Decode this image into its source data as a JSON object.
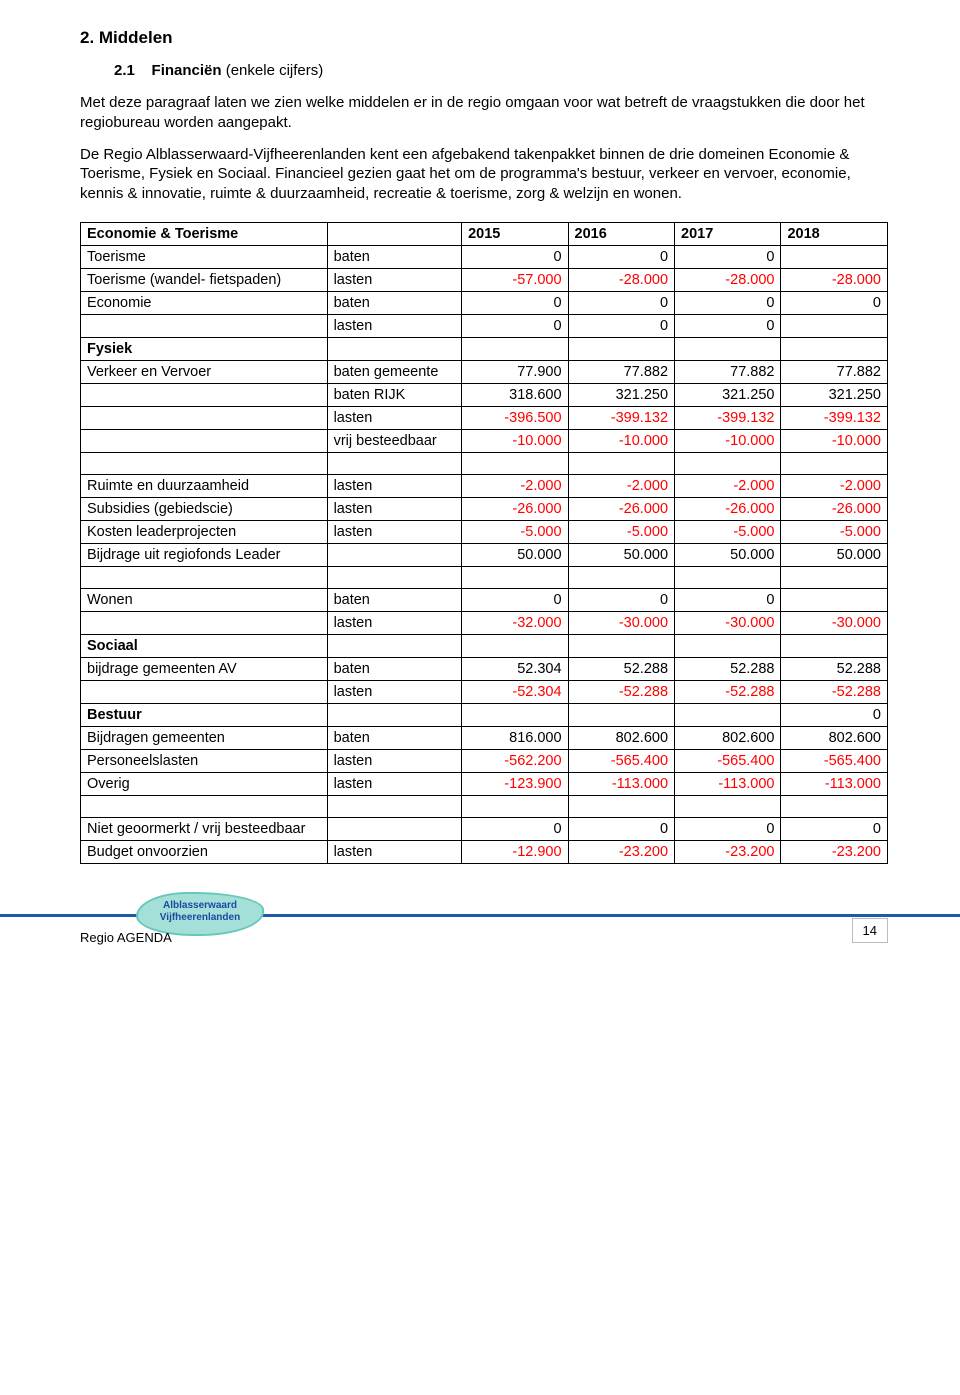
{
  "headings": {
    "section": "2. Middelen",
    "sub_num": "2.1",
    "sub_title": "Financiën",
    "sub_paren": "(enkele cijfers)"
  },
  "paragraphs": {
    "p1": "Met deze paragraaf laten we zien welke middelen er in de regio omgaan voor wat betreft de vraagstukken die door het regiobureau worden aangepakt.",
    "p2": "De Regio Alblasserwaard-Vijfheerenlanden kent een afgebakend takenpakket binnen de drie domeinen Economie & Toerisme, Fysiek en Sociaal. Financieel gezien gaat het om de programma's bestuur, verkeer en vervoer, economie, kennis & innovatie, ruimte & duurzaamheid, recreatie & toerisme, zorg & welzijn en wonen."
  },
  "table": {
    "header": [
      "Economie & Toerisme",
      "",
      "2015",
      "2016",
      "2017",
      "2018"
    ],
    "rows": [
      {
        "label": "Toerisme",
        "type": "baten",
        "v": [
          "0",
          "0",
          "0",
          ""
        ]
      },
      {
        "label": "Toerisme (wandel- fietspaden)",
        "type": "lasten",
        "v": [
          "-57.000",
          "-28.000",
          "-28.000",
          "-28.000"
        ],
        "red": true
      },
      {
        "label": "Economie",
        "type": "baten",
        "v": [
          "0",
          "0",
          "0",
          "0"
        ]
      },
      {
        "label": "",
        "type": "lasten",
        "v": [
          "0",
          "0",
          "0",
          ""
        ]
      },
      {
        "label": "Fysiek",
        "type": "",
        "v": [
          "",
          "",
          "",
          ""
        ],
        "bold": true
      },
      {
        "label": "Verkeer en Vervoer",
        "type": "baten gemeente",
        "v": [
          "77.900",
          "77.882",
          "77.882",
          "77.882"
        ]
      },
      {
        "label": "",
        "type": "baten RIJK",
        "v": [
          "318.600",
          "321.250",
          "321.250",
          "321.250"
        ]
      },
      {
        "label": "",
        "type": "lasten",
        "v": [
          "-396.500",
          "-399.132",
          "-399.132",
          "-399.132"
        ],
        "red": true
      },
      {
        "label": "",
        "type": "vrij besteedbaar",
        "v": [
          "-10.000",
          "-10.000",
          "-10.000",
          "-10.000"
        ],
        "red": true
      },
      {
        "spacer": true
      },
      {
        "label": "Ruimte en duurzaamheid",
        "type": "lasten",
        "v": [
          "-2.000",
          "-2.000",
          "-2.000",
          "-2.000"
        ],
        "red": true
      },
      {
        "label": "Subsidies (gebiedscie)",
        "type": "lasten",
        "v": [
          "-26.000",
          "-26.000",
          "-26.000",
          "-26.000"
        ],
        "red": true
      },
      {
        "label": "Kosten leaderprojecten",
        "type": "lasten",
        "v": [
          "-5.000",
          "-5.000",
          "-5.000",
          "-5.000"
        ],
        "red": true
      },
      {
        "label": "Bijdrage uit regiofonds Leader",
        "type": "",
        "v": [
          "50.000",
          "50.000",
          "50.000",
          "50.000"
        ]
      },
      {
        "spacer": true
      },
      {
        "label": "Wonen",
        "type": "baten",
        "v": [
          "0",
          "0",
          "0",
          ""
        ]
      },
      {
        "label": "",
        "type": "lasten",
        "v": [
          "-32.000",
          "-30.000",
          "-30.000",
          "-30.000"
        ],
        "red": true
      },
      {
        "label": "Sociaal",
        "type": "",
        "v": [
          "",
          "",
          "",
          ""
        ],
        "bold": true
      },
      {
        "label": "bijdrage gemeenten AV",
        "type": "baten",
        "v": [
          "52.304",
          "52.288",
          "52.288",
          "52.288"
        ]
      },
      {
        "label": "",
        "type": "lasten",
        "v": [
          "-52.304",
          "-52.288",
          "-52.288",
          "-52.288"
        ],
        "red": true
      },
      {
        "label": "Bestuur",
        "type": "",
        "v": [
          "",
          "",
          "",
          "0"
        ],
        "bold": true
      },
      {
        "label": "Bijdragen gemeenten",
        "type": "baten",
        "v": [
          "816.000",
          "802.600",
          "802.600",
          "802.600"
        ]
      },
      {
        "label": "Personeelslasten",
        "type": "lasten",
        "v": [
          "-562.200",
          "-565.400",
          "-565.400",
          "-565.400"
        ],
        "red": true
      },
      {
        "label": "Overig",
        "type": "lasten",
        "v": [
          "-123.900",
          "-113.000",
          "-113.000",
          "-113.000"
        ],
        "red": true
      },
      {
        "spacer": true
      },
      {
        "label": "Niet geoormerkt / vrij besteedbaar",
        "type": "",
        "v": [
          "0",
          "0",
          "0",
          "0"
        ]
      },
      {
        "label": "Budget onvoorzien",
        "type": "lasten",
        "v": [
          "-12.900",
          "-23.200",
          "-23.200",
          "-23.200"
        ],
        "red": true
      }
    ]
  },
  "footer": {
    "doc": "Regio AGENDA",
    "logo_line1": "Alblasserwaard",
    "logo_line2": "Vijfheerenlanden",
    "page": "14"
  },
  "colors": {
    "red": "#ff0000",
    "rule": "#1f5aa6",
    "logo_fill": "#a4e0d8",
    "logo_stroke": "#66c7bb",
    "logo_text": "#1a4aa0"
  }
}
